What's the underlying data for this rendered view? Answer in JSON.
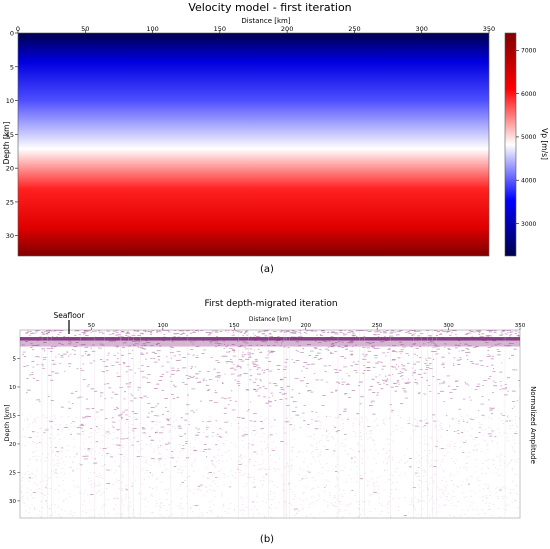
{
  "chart_data": [
    {
      "type": "heatmap",
      "title": "Velocity model - first iteration",
      "xlabel": "Distance [km]",
      "ylabel": "Depth [km]",
      "xlim": [
        0,
        350
      ],
      "ylim": [
        33,
        0
      ],
      "xticks": [
        0,
        50,
        100,
        150,
        200,
        250,
        300,
        350
      ],
      "yticks": [
        0,
        5,
        10,
        15,
        20,
        25,
        30
      ],
      "colorbar": {
        "label": "Vp  [m/s]",
        "range": [
          2250,
          7400
        ],
        "ticks": [
          3000,
          4000,
          5000,
          6000,
          7000
        ],
        "colormap": "seismic (blue-white-red)"
      },
      "depth_profile": {
        "depth": [
          0,
          10,
          17,
          22,
          33
        ],
        "vp": [
          2250,
          3600,
          5000,
          6200,
          7400
        ]
      },
      "caption": "(a)",
      "colors": {
        "low": "#00004c",
        "mid": "#ffffff",
        "high": "#7f0000"
      }
    },
    {
      "type": "heatmap",
      "title": "First depth-migrated iteration",
      "xlabel": "Distance [km]",
      "ylabel": "Depth [km]",
      "xlim": [
        0,
        350
      ],
      "ylim": [
        33,
        0
      ],
      "xticks": [
        50,
        100,
        150,
        200,
        250,
        300,
        350
      ],
      "yticks": [
        5,
        10,
        15,
        20,
        25,
        30
      ],
      "colorbar_label": "Normalized Amplitude",
      "annotation": "Seafloor",
      "seafloor_depth_km": 1.5,
      "caption": "(b)",
      "colors": {
        "reflectivity": "#8a2a82"
      }
    }
  ]
}
